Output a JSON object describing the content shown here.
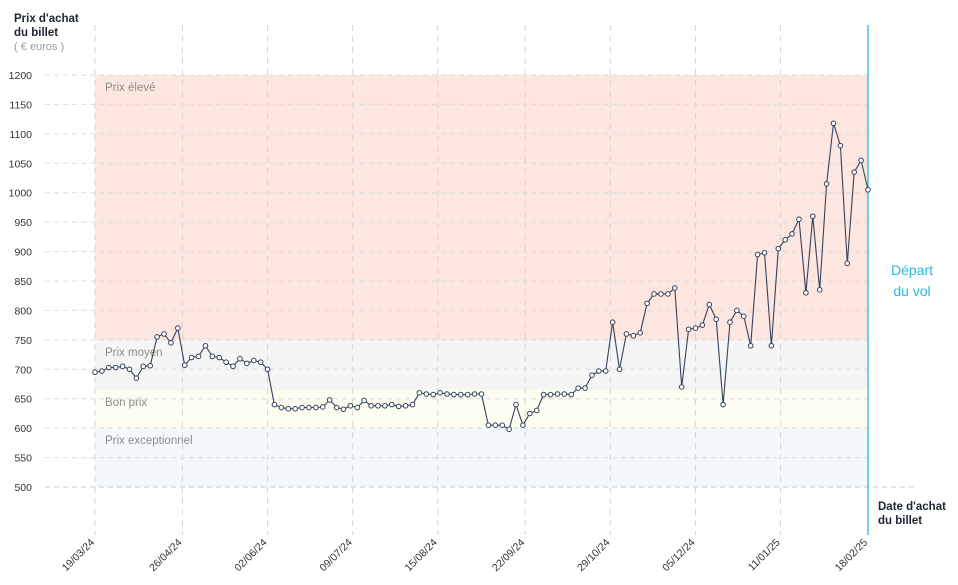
{
  "chart_data": {
    "type": "line",
    "y_label": [
      "Prix d'achat",
      "du billet"
    ],
    "y_unit": "( € euros )",
    "x_label": [
      "Date d'achat",
      "du billet"
    ],
    "event": {
      "x": "18/02/25",
      "label": [
        "Départ",
        "du vol"
      ],
      "color": "#2bb8d9"
    },
    "bands": [
      {
        "label": "Prix élevé",
        "from": 750,
        "to": 1200,
        "color": "#fde6e0"
      },
      {
        "label": "Prix moyen",
        "from": 665,
        "to": 750,
        "color": "#f5f5f6"
      },
      {
        "label": "Bon prix",
        "from": 600,
        "to": 665,
        "color": "#fdfdf1"
      },
      {
        "label": "Prix exceptionnel",
        "from": 500,
        "to": 600,
        "color": "#f2f8fc"
      }
    ],
    "color": "#34425a",
    "ylim": [
      500,
      1200
    ],
    "yticks": [
      500,
      550,
      600,
      650,
      700,
      750,
      800,
      850,
      900,
      950,
      1000,
      1050,
      1100,
      1150,
      1200
    ],
    "xlim": [
      "19/03/24",
      "18/02/25"
    ],
    "xticks": [
      "19/03/24",
      "26/04/24",
      "02/06/24",
      "09/07/24",
      "15/08/24",
      "22/09/24",
      "29/10/24",
      "05/12/24",
      "11/01/25",
      "18/02/25"
    ],
    "grid": true,
    "x": [
      "19/03/24",
      "22/03/24",
      "25/03/24",
      "28/03/24",
      "31/03/24",
      "03/04/24",
      "06/04/24",
      "09/04/24",
      "12/04/24",
      "15/04/24",
      "18/04/24",
      "21/04/24",
      "24/04/24",
      "27/04/24",
      "30/04/24",
      "03/05/24",
      "06/05/24",
      "09/05/24",
      "12/05/24",
      "15/05/24",
      "18/05/24",
      "21/05/24",
      "24/05/24",
      "27/05/24",
      "30/05/24",
      "02/06/24",
      "05/06/24",
      "08/06/24",
      "11/06/24",
      "14/06/24",
      "17/06/24",
      "20/06/24",
      "23/06/24",
      "26/06/24",
      "29/06/24",
      "02/07/24",
      "05/07/24",
      "08/07/24",
      "11/07/24",
      "14/07/24",
      "17/07/24",
      "20/07/24",
      "23/07/24",
      "26/07/24",
      "29/07/24",
      "01/08/24",
      "04/08/24",
      "07/08/24",
      "10/08/24",
      "13/08/24",
      "16/08/24",
      "19/08/24",
      "22/08/24",
      "25/08/24",
      "28/08/24",
      "31/08/24",
      "03/09/24",
      "06/09/24",
      "09/09/24",
      "12/09/24",
      "15/09/24",
      "18/09/24",
      "21/09/24",
      "24/09/24",
      "27/09/24",
      "30/09/24",
      "03/10/24",
      "06/10/24",
      "09/10/24",
      "12/10/24",
      "15/10/24",
      "18/10/24",
      "21/10/24",
      "24/10/24",
      "27/10/24",
      "30/10/24",
      "02/11/24",
      "05/11/24",
      "08/11/24",
      "11/11/24",
      "14/11/24",
      "17/11/24",
      "20/11/24",
      "23/11/24",
      "26/11/24",
      "29/11/24",
      "02/12/24",
      "05/12/24",
      "08/12/24",
      "11/12/24",
      "14/12/24",
      "17/12/24",
      "20/12/24",
      "23/12/24",
      "26/12/24",
      "29/12/24",
      "01/01/25",
      "04/01/25",
      "07/01/25",
      "10/01/25",
      "13/01/25",
      "16/01/25",
      "19/01/25",
      "22/01/25",
      "25/01/25",
      "28/01/25",
      "31/01/25",
      "03/02/25",
      "06/02/25",
      "09/02/25",
      "12/02/25",
      "15/02/25",
      "18/02/25"
    ],
    "values": [
      695,
      697,
      703,
      703,
      705,
      700,
      685,
      705,
      706,
      755,
      760,
      745,
      770,
      707,
      720,
      722,
      740,
      722,
      720,
      712,
      705,
      718,
      710,
      715,
      712,
      700,
      640,
      635,
      633,
      633,
      635,
      635,
      635,
      636,
      648,
      635,
      632,
      638,
      635,
      647,
      638,
      638,
      638,
      640,
      637,
      638,
      640,
      660,
      658,
      657,
      660,
      658,
      657,
      657,
      657,
      658,
      658,
      605,
      605,
      605,
      598,
      640,
      605,
      625,
      630,
      657,
      657,
      658,
      658,
      657,
      668,
      668,
      690,
      697,
      697,
      780,
      700,
      760,
      757,
      762,
      812,
      828,
      828,
      828,
      838,
      670,
      768,
      770,
      775,
      810,
      785,
      640,
      780,
      800,
      790,
      740,
      895,
      898,
      740,
      905,
      920,
      930,
      955,
      830,
      960,
      835,
      1015,
      1118,
      1080,
      880,
      1035,
      1055,
      1005
    ]
  }
}
